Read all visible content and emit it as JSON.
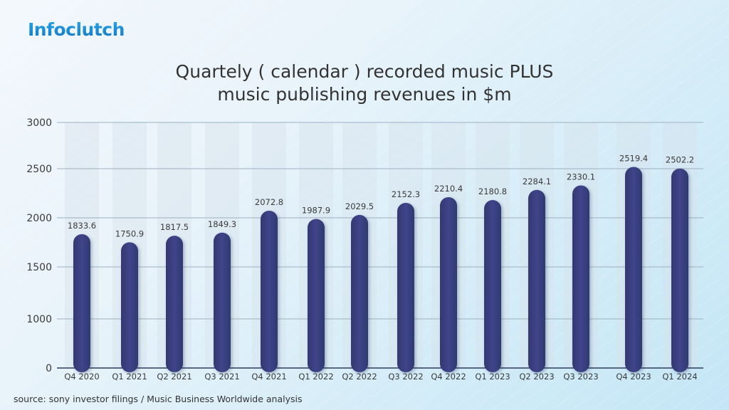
{
  "brand": {
    "logo_text": "Infoclutch",
    "logo_color": "#1a8fd4"
  },
  "chart_data": {
    "type": "bar",
    "title": "Quartely ( calendar ) recorded music PLUS music publishing revenues in $m",
    "title_lines": [
      "Quartely ( calendar ) recorded music PLUS",
      "music publishing revenues in $m"
    ],
    "xlabel": "",
    "ylabel": "",
    "categories": [
      "Q4 2020",
      "Q1 2021",
      "Q2 2021",
      "Q3 2021",
      "Q4 2021",
      "Q1 2022",
      "Q2 2022",
      "Q3 2022",
      "Q4 2022",
      "Q1 2023",
      "Q2 2023",
      "Q3 2023",
      "Q4 2023",
      "Q1 2024"
    ],
    "values": [
      1833.6,
      1750.9,
      1817.5,
      1849.3,
      2072.8,
      1987.9,
      2029.5,
      2152.3,
      2210.4,
      2180.8,
      2284.1,
      2330.1,
      2519.4,
      2502.2
    ],
    "data_labels": [
      "1833.6",
      "1750.9",
      "1817.5",
      "1849.3",
      "2072.8",
      "1987.9",
      "2029.5",
      "2152.3",
      "2210.4",
      "2180.8",
      "2284.1",
      "2330.1",
      "2519.4",
      "2502.2"
    ],
    "y_ticks": [
      "0",
      "1000",
      "1500",
      "2000",
      "2500",
      "3000"
    ],
    "y_tick_values": [
      0,
      1000,
      1500,
      2000,
      2500,
      3000
    ],
    "ylim": [
      0,
      3000
    ],
    "grid": true,
    "legend": null,
    "bar_color": "#3b3f7e"
  },
  "footer": {
    "source": "source: sony investor filings / Music Business Worldwide analysis"
  }
}
